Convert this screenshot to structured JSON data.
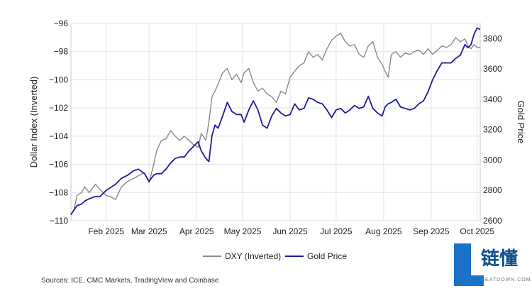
{
  "chart_data": {
    "type": "line",
    "left_axis": {
      "label": "Dollar Index (Inverted)",
      "inverted": true,
      "range": [
        -96,
        -110
      ],
      "ticks": [
        -96,
        -98,
        -100,
        -102,
        -104,
        -106,
        -108,
        -110
      ]
    },
    "right_axis": {
      "label": "Gold Price",
      "range": [
        2600,
        3900
      ],
      "ticks": [
        2600,
        2800,
        3000,
        3200,
        3400,
        3600,
        3800
      ]
    },
    "x_axis": {
      "range": [
        "2025-01-09",
        "2025-10-03"
      ],
      "tick_labels": [
        {
          "date": "2025-02-01",
          "label": "Feb 2025"
        },
        {
          "date": "2025-03-01",
          "label": "Mar 2025"
        },
        {
          "date": "2025-04-01",
          "label": "Apr 2025"
        },
        {
          "date": "2025-05-01",
          "label": "May 2025"
        },
        {
          "date": "2025-06-01",
          "label": "Jun 2025"
        },
        {
          "date": "2025-07-01",
          "label": "Jul 2025"
        },
        {
          "date": "2025-08-01",
          "label": "Aug 2025"
        },
        {
          "date": "2025-09-01",
          "label": "Sep 2025"
        },
        {
          "date": "2025-10-01",
          "label": "Oct 2025"
        }
      ]
    },
    "grid": "horizontal-and-vertical",
    "legend_position": "bottom",
    "series": [
      {
        "name": "DXY (Inverted)",
        "axis": "left",
        "color": "#8a8a8a",
        "points": [
          [
            "2025-01-09",
            -109.6
          ],
          [
            "2025-01-11",
            -109.2
          ],
          [
            "2025-01-13",
            -108.2
          ],
          [
            "2025-01-16",
            -108.0
          ],
          [
            "2025-01-18",
            -107.6
          ],
          [
            "2025-01-21",
            -108.0
          ],
          [
            "2025-01-25",
            -107.4
          ],
          [
            "2025-01-28",
            -107.8
          ],
          [
            "2025-02-01",
            -108.2
          ],
          [
            "2025-02-04",
            -108.3
          ],
          [
            "2025-02-07",
            -108.5
          ],
          [
            "2025-02-11",
            -107.6
          ],
          [
            "2025-02-15",
            -107.2
          ],
          [
            "2025-02-19",
            -107.0
          ],
          [
            "2025-02-22",
            -106.8
          ],
          [
            "2025-02-26",
            -106.6
          ],
          [
            "2025-03-01",
            -107.3
          ],
          [
            "2025-03-04",
            -106.0
          ],
          [
            "2025-03-06",
            -105.0
          ],
          [
            "2025-03-09",
            -104.3
          ],
          [
            "2025-03-12",
            -104.2
          ],
          [
            "2025-03-15",
            -103.6
          ],
          [
            "2025-03-18",
            -104.0
          ],
          [
            "2025-03-21",
            -104.3
          ],
          [
            "2025-03-24",
            -104.0
          ],
          [
            "2025-03-27",
            -104.3
          ],
          [
            "2025-03-30",
            -104.6
          ],
          [
            "2025-04-02",
            -104.8
          ],
          [
            "2025-04-04",
            -103.8
          ],
          [
            "2025-04-07",
            -104.3
          ],
          [
            "2025-04-09",
            -103.0
          ],
          [
            "2025-04-11",
            -101.2
          ],
          [
            "2025-04-13",
            -100.8
          ],
          [
            "2025-04-15",
            -100.3
          ],
          [
            "2025-04-18",
            -99.5
          ],
          [
            "2025-04-21",
            -99.2
          ],
          [
            "2025-04-24",
            -100.0
          ],
          [
            "2025-04-27",
            -99.6
          ],
          [
            "2025-04-30",
            -100.2
          ],
          [
            "2025-05-02",
            -99.5
          ],
          [
            "2025-05-05",
            -99.2
          ],
          [
            "2025-05-08",
            -100.2
          ],
          [
            "2025-05-11",
            -100.8
          ],
          [
            "2025-05-14",
            -100.6
          ],
          [
            "2025-05-17",
            -101.0
          ],
          [
            "2025-05-20",
            -101.2
          ],
          [
            "2025-05-23",
            -101.6
          ],
          [
            "2025-05-26",
            -100.8
          ],
          [
            "2025-05-29",
            -101.0
          ],
          [
            "2025-06-01",
            -99.8
          ],
          [
            "2025-06-04",
            -99.4
          ],
          [
            "2025-06-07",
            -99.0
          ],
          [
            "2025-06-10",
            -98.8
          ],
          [
            "2025-06-13",
            -98.0
          ],
          [
            "2025-06-16",
            -98.4
          ],
          [
            "2025-06-19",
            -98.2
          ],
          [
            "2025-06-22",
            -98.6
          ],
          [
            "2025-06-25",
            -97.8
          ],
          [
            "2025-06-28",
            -97.2
          ],
          [
            "2025-07-01",
            -96.9
          ],
          [
            "2025-07-04",
            -96.7
          ],
          [
            "2025-07-07",
            -97.3
          ],
          [
            "2025-07-10",
            -97.6
          ],
          [
            "2025-07-13",
            -97.5
          ],
          [
            "2025-07-16",
            -98.2
          ],
          [
            "2025-07-19",
            -98.4
          ],
          [
            "2025-07-22",
            -97.6
          ],
          [
            "2025-07-25",
            -97.3
          ],
          [
            "2025-07-28",
            -98.4
          ],
          [
            "2025-07-31",
            -98.9
          ],
          [
            "2025-08-02",
            -99.4
          ],
          [
            "2025-08-04",
            -99.8
          ],
          [
            "2025-08-06",
            -98.2
          ],
          [
            "2025-08-09",
            -98.0
          ],
          [
            "2025-08-12",
            -98.4
          ],
          [
            "2025-08-15",
            -98.1
          ],
          [
            "2025-08-18",
            -98.2
          ],
          [
            "2025-08-21",
            -98.0
          ],
          [
            "2025-08-24",
            -97.9
          ],
          [
            "2025-08-27",
            -98.2
          ],
          [
            "2025-08-30",
            -97.8
          ],
          [
            "2025-09-02",
            -98.2
          ],
          [
            "2025-09-05",
            -97.9
          ],
          [
            "2025-09-08",
            -97.6
          ],
          [
            "2025-09-11",
            -97.7
          ],
          [
            "2025-09-14",
            -97.5
          ],
          [
            "2025-09-17",
            -97.0
          ],
          [
            "2025-09-20",
            -97.3
          ],
          [
            "2025-09-23",
            -97.1
          ],
          [
            "2025-09-25",
            -97.6
          ],
          [
            "2025-09-27",
            -97.8
          ],
          [
            "2025-09-29",
            -97.5
          ],
          [
            "2025-10-01",
            -97.7
          ],
          [
            "2025-10-03",
            -97.7
          ]
        ]
      },
      {
        "name": "Gold Price",
        "axis": "right",
        "color": "#1f1b99",
        "points": [
          [
            "2025-01-09",
            2640
          ],
          [
            "2025-01-11",
            2670
          ],
          [
            "2025-01-13",
            2700
          ],
          [
            "2025-01-16",
            2710
          ],
          [
            "2025-01-18",
            2730
          ],
          [
            "2025-01-21",
            2745
          ],
          [
            "2025-01-25",
            2760
          ],
          [
            "2025-01-28",
            2760
          ],
          [
            "2025-02-01",
            2800
          ],
          [
            "2025-02-04",
            2820
          ],
          [
            "2025-02-07",
            2840
          ],
          [
            "2025-02-11",
            2880
          ],
          [
            "2025-02-15",
            2900
          ],
          [
            "2025-02-19",
            2930
          ],
          [
            "2025-02-22",
            2940
          ],
          [
            "2025-02-26",
            2910
          ],
          [
            "2025-03-01",
            2860
          ],
          [
            "2025-03-04",
            2900
          ],
          [
            "2025-03-06",
            2910
          ],
          [
            "2025-03-09",
            2910
          ],
          [
            "2025-03-12",
            2940
          ],
          [
            "2025-03-15",
            2980
          ],
          [
            "2025-03-18",
            3010
          ],
          [
            "2025-03-21",
            3020
          ],
          [
            "2025-03-24",
            3020
          ],
          [
            "2025-03-27",
            3060
          ],
          [
            "2025-03-30",
            3090
          ],
          [
            "2025-04-02",
            3120
          ],
          [
            "2025-04-04",
            3060
          ],
          [
            "2025-04-07",
            3010
          ],
          [
            "2025-04-09",
            2990
          ],
          [
            "2025-04-11",
            3160
          ],
          [
            "2025-04-13",
            3230
          ],
          [
            "2025-04-15",
            3210
          ],
          [
            "2025-04-18",
            3290
          ],
          [
            "2025-04-21",
            3380
          ],
          [
            "2025-04-24",
            3320
          ],
          [
            "2025-04-27",
            3300
          ],
          [
            "2025-04-30",
            3300
          ],
          [
            "2025-05-02",
            3250
          ],
          [
            "2025-05-05",
            3330
          ],
          [
            "2025-05-08",
            3390
          ],
          [
            "2025-05-11",
            3330
          ],
          [
            "2025-05-14",
            3230
          ],
          [
            "2025-05-17",
            3210
          ],
          [
            "2025-05-20",
            3290
          ],
          [
            "2025-05-23",
            3340
          ],
          [
            "2025-05-26",
            3310
          ],
          [
            "2025-05-29",
            3290
          ],
          [
            "2025-06-01",
            3300
          ],
          [
            "2025-06-04",
            3370
          ],
          [
            "2025-06-07",
            3330
          ],
          [
            "2025-06-10",
            3340
          ],
          [
            "2025-06-13",
            3410
          ],
          [
            "2025-06-16",
            3400
          ],
          [
            "2025-06-19",
            3380
          ],
          [
            "2025-06-22",
            3370
          ],
          [
            "2025-06-25",
            3330
          ],
          [
            "2025-06-28",
            3280
          ],
          [
            "2025-07-01",
            3330
          ],
          [
            "2025-07-04",
            3340
          ],
          [
            "2025-07-07",
            3310
          ],
          [
            "2025-07-10",
            3330
          ],
          [
            "2025-07-13",
            3360
          ],
          [
            "2025-07-16",
            3340
          ],
          [
            "2025-07-19",
            3350
          ],
          [
            "2025-07-22",
            3420
          ],
          [
            "2025-07-25",
            3340
          ],
          [
            "2025-07-28",
            3310
          ],
          [
            "2025-07-31",
            3290
          ],
          [
            "2025-08-02",
            3350
          ],
          [
            "2025-08-04",
            3370
          ],
          [
            "2025-08-06",
            3380
          ],
          [
            "2025-08-09",
            3400
          ],
          [
            "2025-08-12",
            3350
          ],
          [
            "2025-08-15",
            3340
          ],
          [
            "2025-08-18",
            3330
          ],
          [
            "2025-08-21",
            3340
          ],
          [
            "2025-08-24",
            3370
          ],
          [
            "2025-08-27",
            3390
          ],
          [
            "2025-08-30",
            3450
          ],
          [
            "2025-09-02",
            3530
          ],
          [
            "2025-09-05",
            3590
          ],
          [
            "2025-09-08",
            3640
          ],
          [
            "2025-09-11",
            3640
          ],
          [
            "2025-09-14",
            3640
          ],
          [
            "2025-09-17",
            3670
          ],
          [
            "2025-09-20",
            3690
          ],
          [
            "2025-09-23",
            3760
          ],
          [
            "2025-09-25",
            3740
          ],
          [
            "2025-09-27",
            3760
          ],
          [
            "2025-09-29",
            3830
          ],
          [
            "2025-10-01",
            3870
          ],
          [
            "2025-10-03",
            3860
          ]
        ]
      }
    ]
  },
  "legend": {
    "items": [
      "DXY (Inverted)",
      "Gold Price"
    ]
  },
  "source": "Sources: ICE, CMC Markets, TradingView and Coinbase",
  "watermark": {
    "logo_letter": "L",
    "chinese": "链懂",
    "english": "NEATDOWN.COM"
  }
}
